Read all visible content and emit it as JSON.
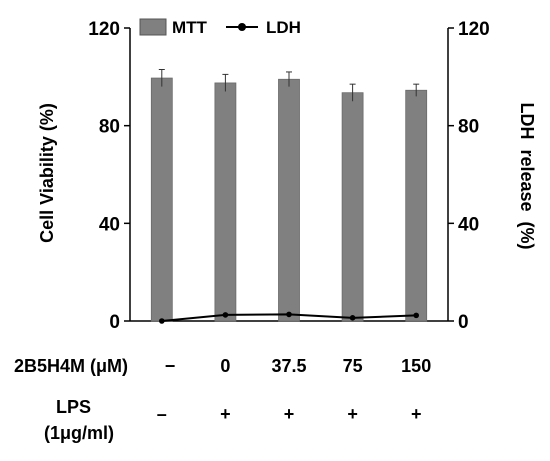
{
  "chart_data": {
    "type": "bar",
    "categories": [
      "−",
      "0",
      "37.5",
      "75",
      "150"
    ],
    "series": [
      {
        "name": "MTT",
        "kind": "bar",
        "axis": "left",
        "color": "#808080",
        "values": [
          99.5,
          97.5,
          99,
          93.5,
          94.5
        ],
        "errors": [
          3.5,
          3.5,
          3,
          3.5,
          2.5
        ]
      },
      {
        "name": "LDH",
        "kind": "line",
        "axis": "right",
        "color": "#000000",
        "values": [
          0,
          2.5,
          2.7,
          1.3,
          2.3
        ]
      }
    ],
    "ylabel": "Cell Viability (%)",
    "ylabel_right": "LDH  release  (%)",
    "ylim": [
      0,
      120
    ],
    "ylim_right": [
      0,
      120
    ],
    "yticks": [
      "0",
      "40",
      "80",
      "120"
    ],
    "yticks_right": [
      "0",
      "40",
      "80",
      "120"
    ],
    "grid": false,
    "legend_position": "top"
  },
  "conditions": [
    {
      "label": "2B5H4M (μM)",
      "values": [
        "−",
        "0",
        "37.5",
        "75",
        "150"
      ]
    },
    {
      "label_lines": [
        "LPS",
        "(1μg/ml)"
      ],
      "values": [
        "–",
        "+",
        "+",
        "+",
        "+"
      ]
    }
  ]
}
